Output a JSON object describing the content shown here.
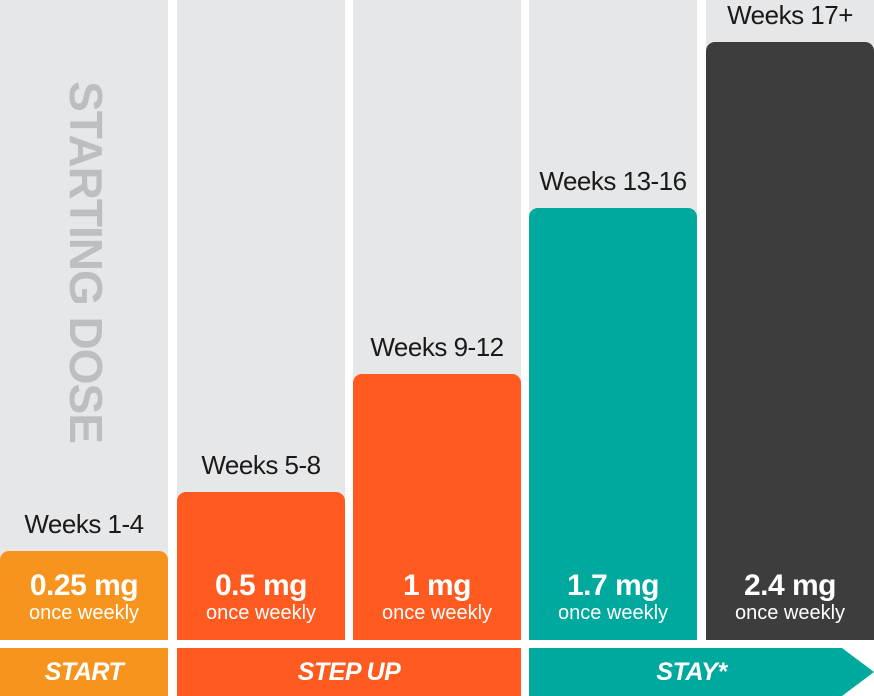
{
  "colors": {
    "background_column": "#e6e7e9",
    "start": "#f7941d",
    "step_up": "#ff5a1f",
    "stay": "#00a99d",
    "maintenance": "#3d3d3d",
    "title_text": "#bdbec0"
  },
  "vertical_title": "STARTING DOSE",
  "chart_data": {
    "type": "bar",
    "title": "STARTING DOSE",
    "categories": [
      "Weeks 1-4",
      "Weeks 5-8",
      "Weeks 9-12",
      "Weeks 13-16",
      "Weeks 17+"
    ],
    "series": [
      {
        "name": "Dose (mg once weekly)",
        "values": [
          0.25,
          0.5,
          1,
          1.7,
          2.4
        ]
      }
    ],
    "dose_labels": [
      "0.25 mg",
      "0.5 mg",
      "1 mg",
      "1.7 mg",
      "2.4 mg"
    ],
    "frequency_label": "once weekly",
    "bar_colors": [
      "#f7941d",
      "#ff5a1f",
      "#ff5a1f",
      "#00a99d",
      "#3d3d3d"
    ],
    "phases": [
      {
        "label": "START",
        "color": "#f7941d",
        "covers": [
          0
        ]
      },
      {
        "label": "STEP UP",
        "color": "#ff5a1f",
        "covers": [
          1,
          2
        ]
      },
      {
        "label": "STAY*",
        "color": "#00a99d",
        "covers": [
          3,
          4
        ]
      }
    ],
    "xlabel": "",
    "ylabel": "",
    "axis_visible": false,
    "grid": false
  }
}
